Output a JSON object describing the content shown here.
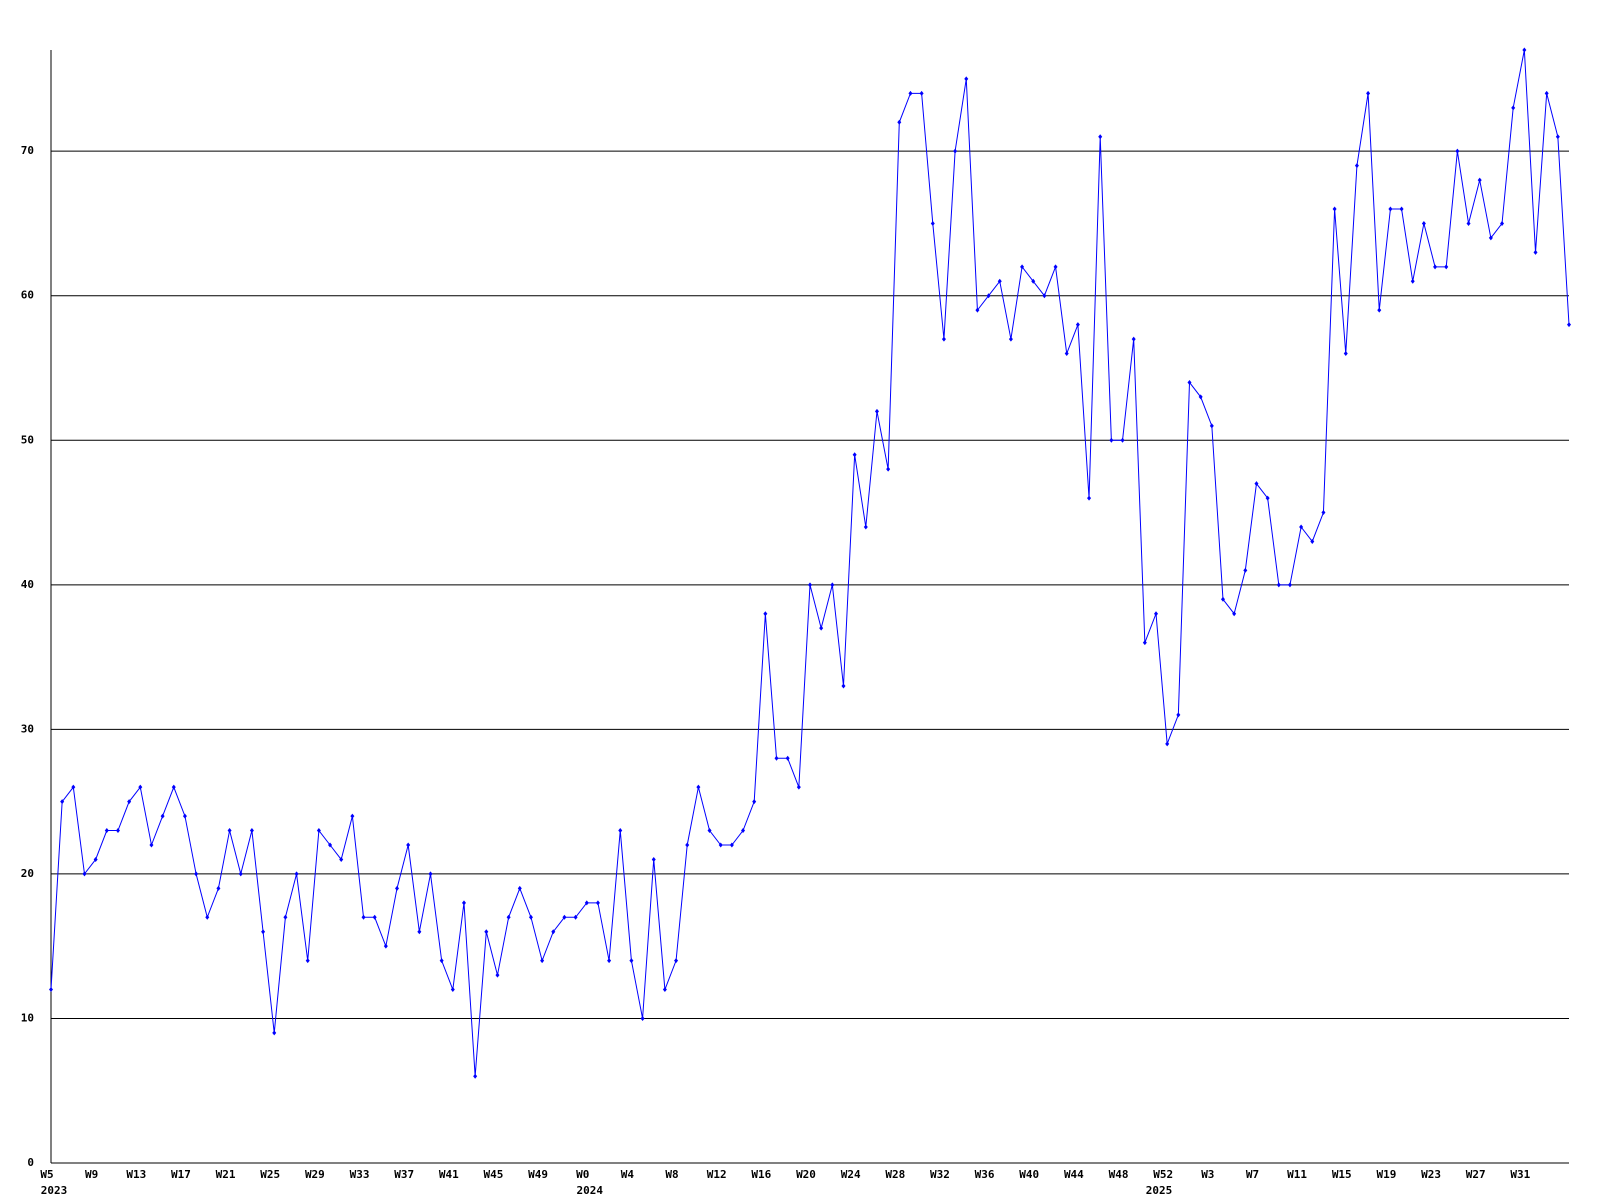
{
  "chart_data": {
    "type": "line",
    "categories": [
      "W5",
      null,
      null,
      null,
      "W9",
      null,
      null,
      null,
      "W13",
      null,
      null,
      null,
      "W17",
      null,
      null,
      null,
      "W21",
      null,
      null,
      null,
      "W25",
      null,
      null,
      null,
      "W29",
      null,
      null,
      null,
      "W33",
      null,
      null,
      null,
      "W37",
      null,
      null,
      null,
      "W41",
      null,
      null,
      null,
      "W45",
      null,
      null,
      null,
      "W49",
      null,
      null,
      null,
      "W0",
      null,
      null,
      null,
      "W4",
      null,
      null,
      null,
      "W8",
      null,
      null,
      null,
      "W12",
      null,
      null,
      null,
      "W16",
      null,
      null,
      null,
      "W20",
      null,
      null,
      null,
      "W24",
      null,
      null,
      null,
      "W28",
      null,
      null,
      null,
      "W32",
      null,
      null,
      null,
      "W36",
      null,
      null,
      null,
      "W40",
      null,
      null,
      null,
      "W44",
      null,
      null,
      null,
      "W48",
      null,
      null,
      null,
      "W52",
      null,
      null,
      null,
      "W3",
      null,
      null,
      null,
      "W7",
      null,
      null,
      null,
      "W11",
      null,
      null,
      null,
      "W15",
      null,
      null,
      null,
      "W19",
      null,
      null,
      null,
      "W23",
      null,
      null,
      null,
      "W27",
      null,
      null,
      null,
      "W31",
      null,
      null,
      null,
      null
    ],
    "years": [
      "2023",
      null,
      null,
      null,
      null,
      null,
      null,
      null,
      null,
      null,
      null,
      null,
      null,
      null,
      null,
      null,
      null,
      null,
      null,
      null,
      null,
      null,
      null,
      null,
      null,
      null,
      null,
      null,
      null,
      null,
      null,
      null,
      null,
      null,
      null,
      null,
      null,
      null,
      null,
      null,
      null,
      null,
      null,
      null,
      null,
      null,
      null,
      null,
      "2024",
      null,
      null,
      null,
      null,
      null,
      null,
      null,
      null,
      null,
      null,
      null,
      null,
      null,
      null,
      null,
      null,
      null,
      null,
      null,
      null,
      null,
      null,
      null,
      null,
      null,
      null,
      null,
      null,
      null,
      null,
      null,
      null,
      null,
      null,
      null,
      null,
      null,
      null,
      null,
      null,
      null,
      null,
      null,
      null,
      null,
      null,
      null,
      null,
      null,
      null,
      "2025",
      null,
      null,
      null,
      null,
      null,
      null,
      null,
      null,
      null,
      null,
      null,
      null,
      null,
      null,
      null,
      null,
      null,
      null,
      null,
      null,
      null,
      null,
      null,
      null,
      null,
      null,
      null,
      null,
      null,
      null,
      null,
      null,
      null,
      null,
      null
    ],
    "series": [
      {
        "color": "#0000ff",
        "values": [
          12,
          25,
          26,
          20,
          21,
          23,
          23,
          25,
          26,
          22,
          24,
          26,
          24,
          20,
          17,
          19,
          23,
          20,
          23,
          16,
          9,
          17,
          20,
          14,
          23,
          22,
          21,
          24,
          17,
          17,
          15,
          19,
          22,
          16,
          20,
          14,
          12,
          18,
          6,
          16,
          13,
          17,
          19,
          17,
          14,
          16,
          17,
          17,
          18,
          18,
          14,
          23,
          14,
          10,
          21,
          12,
          14,
          22,
          26,
          23,
          22,
          22,
          23,
          25,
          38,
          28,
          28,
          26,
          40,
          37,
          40,
          33,
          49,
          44,
          52,
          48,
          72,
          74,
          74,
          65,
          57,
          70,
          75,
          59,
          60,
          61,
          57,
          62,
          61,
          60,
          62,
          56,
          58,
          46,
          71,
          50,
          50,
          57,
          36,
          38,
          29,
          31,
          54,
          53,
          51,
          39,
          38,
          41,
          47,
          46,
          40,
          40,
          44,
          43,
          45,
          66,
          56,
          69,
          74,
          59,
          66,
          66,
          61,
          65,
          62,
          62,
          70,
          65,
          68,
          64,
          65,
          73,
          77,
          63,
          74,
          71,
          58
        ]
      }
    ],
    "ylim": [
      0,
      77
    ],
    "yticks": [
      0,
      10,
      20,
      30,
      40,
      50,
      60,
      70
    ],
    "grid": true
  }
}
